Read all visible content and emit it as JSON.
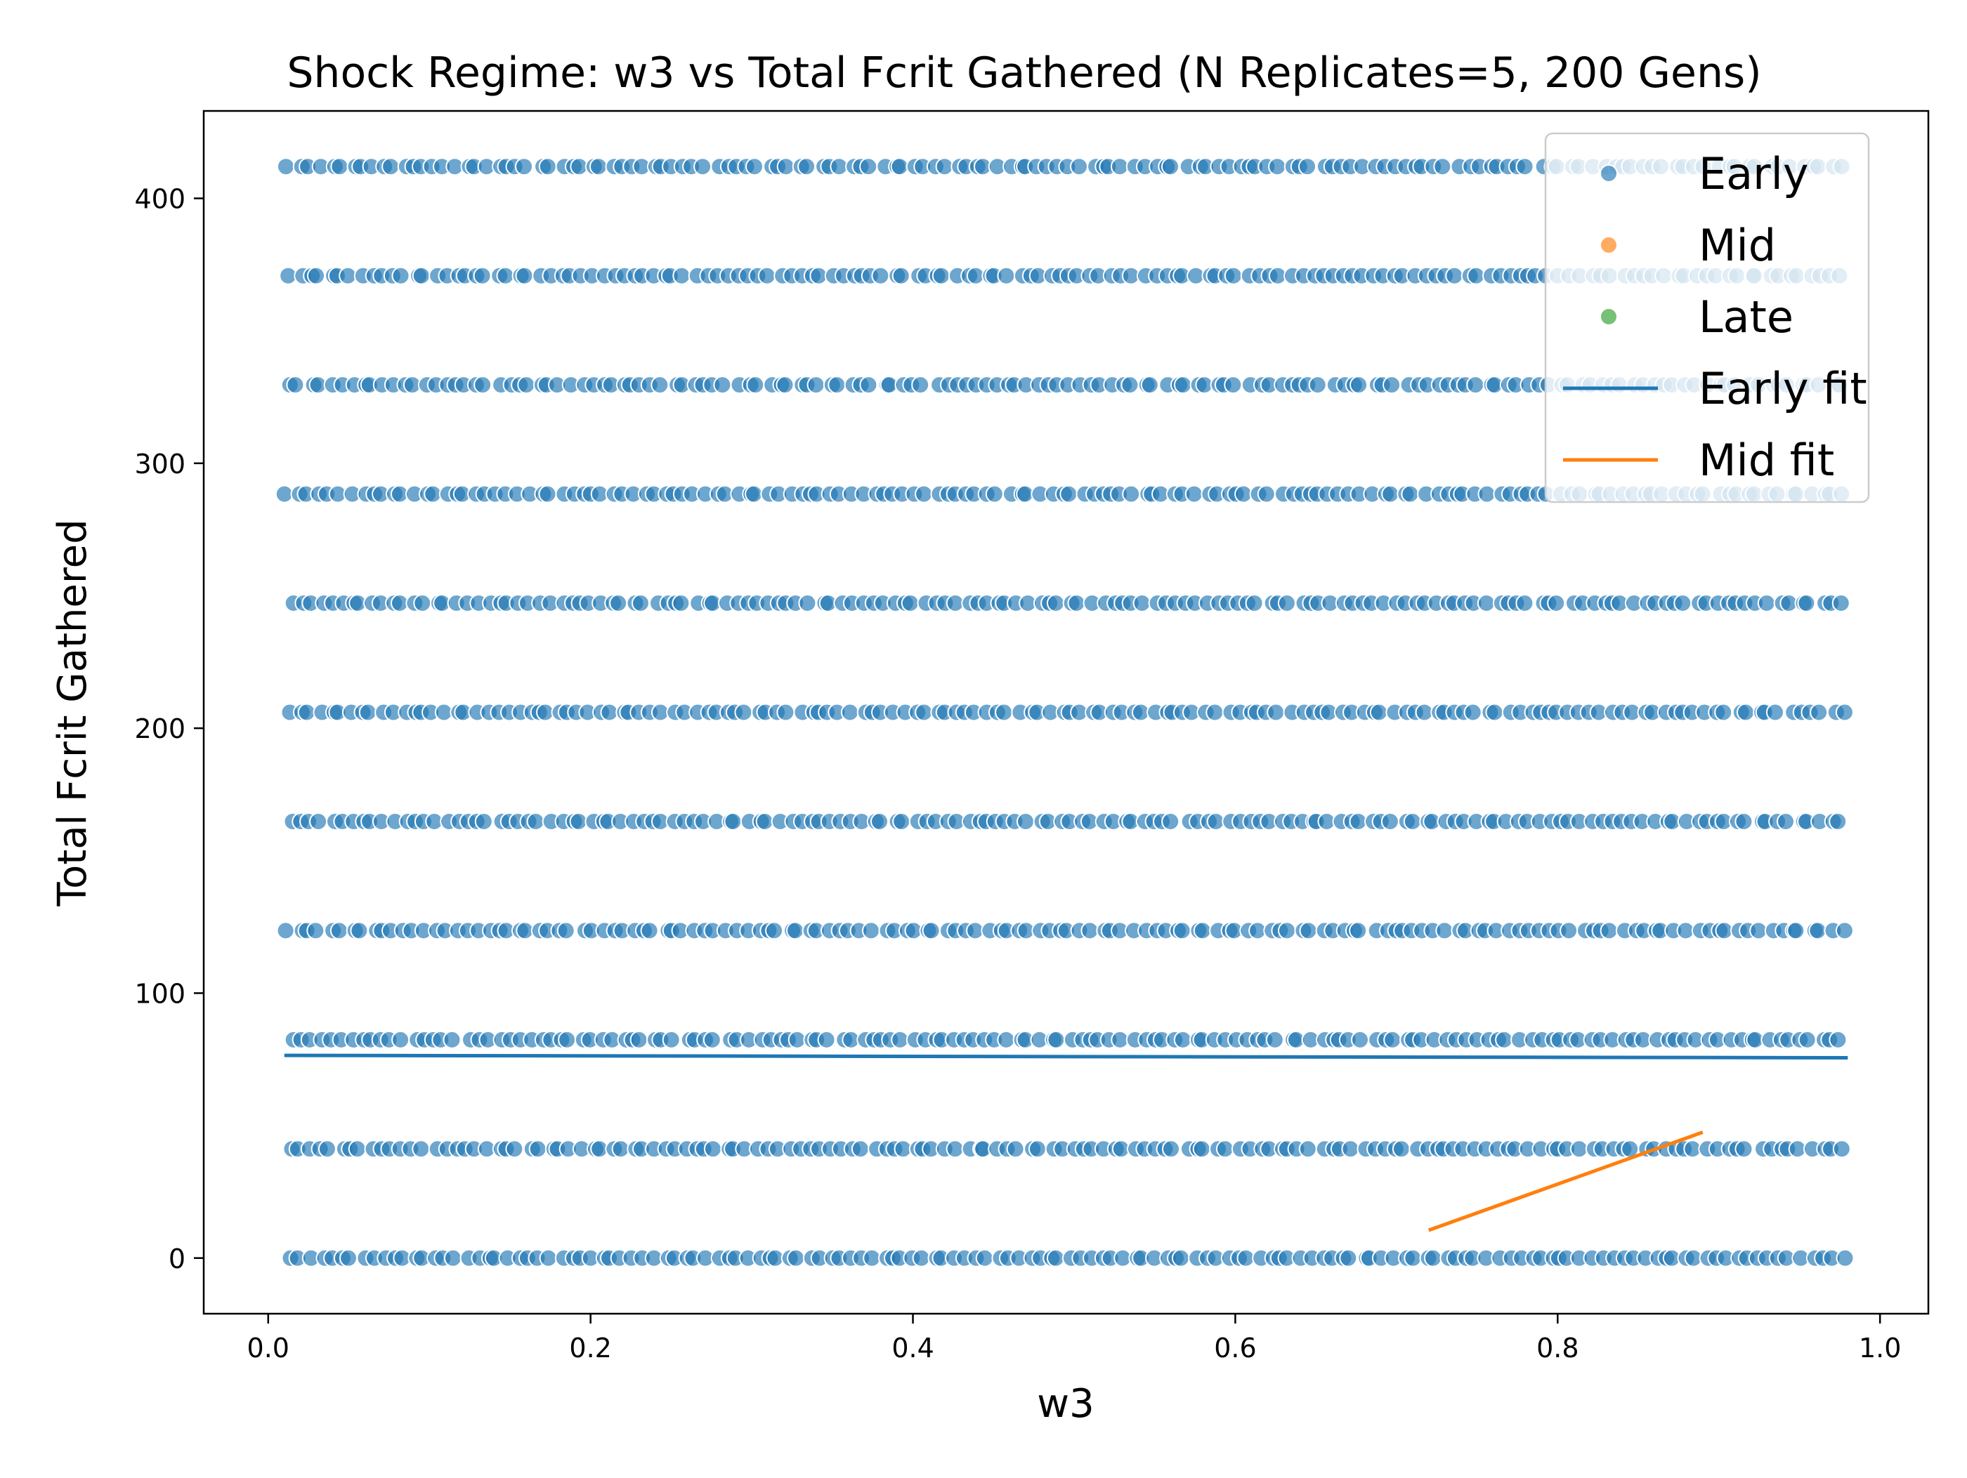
{
  "chart_data": {
    "type": "scatter",
    "title": "Shock Regime: w3 vs Total Fcrit Gathered (N Replicates=5, 200 Gens)",
    "xlabel": "w3",
    "ylabel": "Total Fcrit Gathered",
    "xlim": [
      -0.04,
      1.03
    ],
    "ylim": [
      -21,
      433
    ],
    "x_ticks": [
      0.0,
      0.2,
      0.4,
      0.6,
      0.8,
      1.0
    ],
    "x_tick_labels": [
      "0.0",
      "0.2",
      "0.4",
      "0.6",
      "0.8",
      "1.0"
    ],
    "y_ticks": [
      0,
      100,
      200,
      300,
      400
    ],
    "y_tick_labels": [
      "0",
      "100",
      "200",
      "300",
      "400"
    ],
    "grid": false,
    "legend_position": "top-right",
    "series": [
      {
        "name": "Early",
        "kind": "scatter",
        "color": "#1f77b4",
        "x_range": [
          0.01,
          0.98
        ],
        "y_levels": [
          0,
          41.2,
          82.4,
          123.6,
          164.8,
          206,
          247.2,
          288.4,
          329.6,
          370.8,
          412
        ]
      },
      {
        "name": "Mid",
        "kind": "scatter",
        "color": "#ff7f0e"
      },
      {
        "name": "Late",
        "kind": "scatter",
        "color": "#2ca02c"
      },
      {
        "name": "Early fit",
        "kind": "line",
        "color": "#1f77b4",
        "x": [
          0.01,
          0.98
        ],
        "y": [
          76.5,
          75.6
        ]
      },
      {
        "name": "Mid fit",
        "kind": "line",
        "color": "#ff7f0e",
        "x": [
          0.72,
          0.89
        ],
        "y": [
          10.5,
          47.5
        ]
      }
    ],
    "legend": [
      "Early",
      "Mid",
      "Late",
      "Early fit",
      "Mid fit"
    ]
  }
}
